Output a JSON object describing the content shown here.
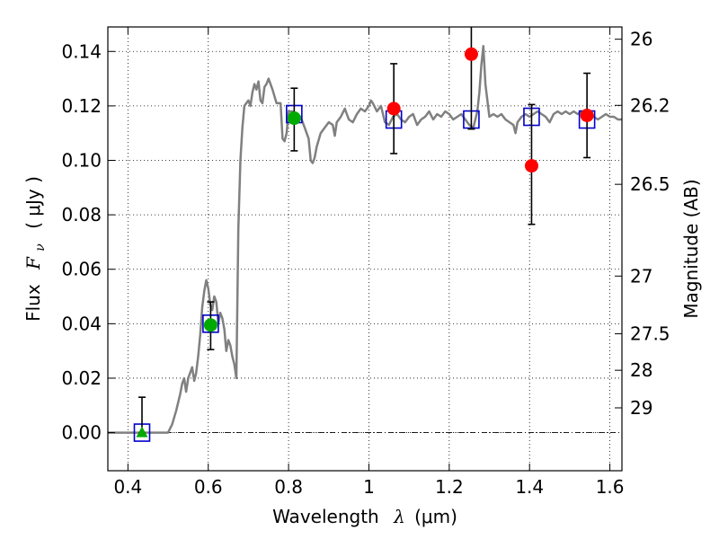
{
  "chart_data": {
    "type": "scatter",
    "xlabel": {
      "prefix": "Wavelength",
      "symbol": "λ",
      "unit": "(μm)"
    },
    "ylabel": {
      "prefix": "Flux",
      "symbol": "F",
      "subscript": "ν",
      "unit": "( μJy )"
    },
    "y2label": "Magnitude (AB)",
    "xlim": [
      0.35,
      1.63
    ],
    "ylim": [
      -0.014,
      0.149
    ],
    "grid": true,
    "x_ticks": [
      0.4,
      0.6,
      0.8,
      1.0,
      1.2,
      1.4,
      1.6
    ],
    "x_tick_labels": [
      "0.4",
      "0.6",
      "0.8",
      "1",
      "1.2",
      "1.4",
      "1.6"
    ],
    "y_ticks": [
      0.0,
      0.02,
      0.04,
      0.06,
      0.08,
      0.1,
      0.12,
      0.14
    ],
    "y_tick_labels": [
      "0.00",
      "0.02",
      "0.04",
      "0.06",
      "0.08",
      "0.10",
      "0.12",
      "0.14"
    ],
    "mag_ticks": [
      {
        "label": "26",
        "flux": 0.1445
      },
      {
        "label": "26.2",
        "flux": 0.1202
      },
      {
        "label": "26.5",
        "flux": 0.0912
      },
      {
        "label": "27",
        "flux": 0.0575
      },
      {
        "label": "27.5",
        "flux": 0.0363
      },
      {
        "label": "28",
        "flux": 0.0229
      },
      {
        "label": "29",
        "flux": 0.0091
      }
    ],
    "zero_line": 0.0,
    "series": [
      {
        "kind": "line",
        "color": "#808080",
        "points": [
          [
            0.35,
            0.0
          ],
          [
            0.5,
            0.0
          ],
          [
            0.51,
            0.003
          ],
          [
            0.52,
            0.008
          ],
          [
            0.53,
            0.014
          ],
          [
            0.535,
            0.018
          ],
          [
            0.54,
            0.02
          ],
          [
            0.545,
            0.015
          ],
          [
            0.55,
            0.02
          ],
          [
            0.56,
            0.024
          ],
          [
            0.565,
            0.019
          ],
          [
            0.57,
            0.022
          ],
          [
            0.575,
            0.028
          ],
          [
            0.58,
            0.036
          ],
          [
            0.585,
            0.046
          ],
          [
            0.59,
            0.052
          ],
          [
            0.595,
            0.056
          ],
          [
            0.6,
            0.053
          ],
          [
            0.605,
            0.047
          ],
          [
            0.61,
            0.045
          ],
          [
            0.615,
            0.05
          ],
          [
            0.62,
            0.048
          ],
          [
            0.625,
            0.04
          ],
          [
            0.63,
            0.044
          ],
          [
            0.635,
            0.042
          ],
          [
            0.64,
            0.038
          ],
          [
            0.645,
            0.03
          ],
          [
            0.65,
            0.034
          ],
          [
            0.655,
            0.032
          ],
          [
            0.66,
            0.028
          ],
          [
            0.665,
            0.025
          ],
          [
            0.67,
            0.02
          ],
          [
            0.675,
            0.075
          ],
          [
            0.68,
            0.1
          ],
          [
            0.685,
            0.112
          ],
          [
            0.69,
            0.12
          ],
          [
            0.7,
            0.122
          ],
          [
            0.705,
            0.12
          ],
          [
            0.71,
            0.125
          ],
          [
            0.715,
            0.128
          ],
          [
            0.72,
            0.126
          ],
          [
            0.725,
            0.129
          ],
          [
            0.73,
            0.122
          ],
          [
            0.735,
            0.121
          ],
          [
            0.74,
            0.127
          ],
          [
            0.745,
            0.128
          ],
          [
            0.75,
            0.13
          ],
          [
            0.76,
            0.126
          ],
          [
            0.77,
            0.121
          ],
          [
            0.78,
            0.121
          ],
          [
            0.785,
            0.108
          ],
          [
            0.79,
            0.107
          ],
          [
            0.795,
            0.11
          ],
          [
            0.8,
            0.118
          ],
          [
            0.81,
            0.118
          ],
          [
            0.82,
            0.117
          ],
          [
            0.83,
            0.116
          ],
          [
            0.84,
            0.112
          ],
          [
            0.85,
            0.108
          ],
          [
            0.855,
            0.1
          ],
          [
            0.86,
            0.099
          ],
          [
            0.865,
            0.101
          ],
          [
            0.87,
            0.105
          ],
          [
            0.88,
            0.11
          ],
          [
            0.89,
            0.112
          ],
          [
            0.9,
            0.114
          ],
          [
            0.91,
            0.113
          ],
          [
            0.915,
            0.109
          ],
          [
            0.92,
            0.114
          ],
          [
            0.93,
            0.116
          ],
          [
            0.94,
            0.119
          ],
          [
            0.945,
            0.117
          ],
          [
            0.95,
            0.115
          ],
          [
            0.96,
            0.114
          ],
          [
            0.97,
            0.117
          ],
          [
            0.98,
            0.119
          ],
          [
            0.99,
            0.118
          ],
          [
            1.0,
            0.12
          ],
          [
            1.005,
            0.122
          ],
          [
            1.01,
            0.121
          ],
          [
            1.02,
            0.118
          ],
          [
            1.03,
            0.12
          ],
          [
            1.035,
            0.117
          ],
          [
            1.04,
            0.114
          ],
          [
            1.05,
            0.113
          ],
          [
            1.06,
            0.116
          ],
          [
            1.07,
            0.117
          ],
          [
            1.08,
            0.115
          ],
          [
            1.09,
            0.114
          ],
          [
            1.1,
            0.116
          ],
          [
            1.11,
            0.117
          ],
          [
            1.12,
            0.113
          ],
          [
            1.13,
            0.115
          ],
          [
            1.14,
            0.116
          ],
          [
            1.15,
            0.118
          ],
          [
            1.16,
            0.115
          ],
          [
            1.17,
            0.117
          ],
          [
            1.18,
            0.116
          ],
          [
            1.19,
            0.118
          ],
          [
            1.2,
            0.117
          ],
          [
            1.21,
            0.115
          ],
          [
            1.22,
            0.116
          ],
          [
            1.23,
            0.117
          ],
          [
            1.24,
            0.115
          ],
          [
            1.25,
            0.113
          ],
          [
            1.26,
            0.112
          ],
          [
            1.27,
            0.118
          ],
          [
            1.275,
            0.125
          ],
          [
            1.28,
            0.135
          ],
          [
            1.285,
            0.142
          ],
          [
            1.29,
            0.128
          ],
          [
            1.3,
            0.116
          ],
          [
            1.31,
            0.117
          ],
          [
            1.32,
            0.116
          ],
          [
            1.33,
            0.117
          ],
          [
            1.34,
            0.115
          ],
          [
            1.35,
            0.114
          ],
          [
            1.36,
            0.113
          ],
          [
            1.365,
            0.11
          ],
          [
            1.37,
            0.114
          ],
          [
            1.38,
            0.116
          ],
          [
            1.39,
            0.117
          ],
          [
            1.4,
            0.116
          ],
          [
            1.41,
            0.117
          ],
          [
            1.42,
            0.118
          ],
          [
            1.43,
            0.117
          ],
          [
            1.44,
            0.116
          ],
          [
            1.45,
            0.114
          ],
          [
            1.46,
            0.117
          ],
          [
            1.47,
            0.118
          ],
          [
            1.48,
            0.117
          ],
          [
            1.49,
            0.118
          ],
          [
            1.5,
            0.117
          ],
          [
            1.51,
            0.118
          ],
          [
            1.52,
            0.117
          ],
          [
            1.53,
            0.118
          ],
          [
            1.54,
            0.117
          ],
          [
            1.55,
            0.118
          ],
          [
            1.56,
            0.116
          ],
          [
            1.57,
            0.115
          ],
          [
            1.58,
            0.116
          ],
          [
            1.59,
            0.117
          ],
          [
            1.6,
            0.116
          ],
          [
            1.61,
            0.116
          ],
          [
            1.62,
            0.115
          ],
          [
            1.63,
            0.115
          ]
        ]
      },
      {
        "kind": "markers",
        "marker": "square-open",
        "color": "#0000cc",
        "points": [
          [
            0.435,
            0.0
          ],
          [
            0.606,
            0.04
          ],
          [
            0.814,
            0.117
          ],
          [
            1.062,
            0.115
          ],
          [
            1.255,
            0.115
          ],
          [
            1.405,
            0.116
          ],
          [
            1.543,
            0.115
          ]
        ]
      },
      {
        "kind": "markers",
        "marker": "triangle",
        "color": "#00aa00",
        "points": [
          [
            0.435,
            0.0
          ]
        ],
        "errors": [
          [
            0.0,
            0.013
          ]
        ]
      },
      {
        "kind": "markers",
        "marker": "circle",
        "color": "#00aa00",
        "points": [
          [
            0.606,
            0.0395
          ],
          [
            0.814,
            0.1155
          ]
        ],
        "errors": [
          [
            0.0305,
            0.048
          ],
          [
            0.1035,
            0.1265
          ]
        ]
      },
      {
        "kind": "markers",
        "marker": "circle",
        "color": "#ff0000",
        "points": [
          [
            1.062,
            0.119
          ],
          [
            1.255,
            0.139
          ],
          [
            1.405,
            0.098
          ],
          [
            1.543,
            0.1165
          ]
        ],
        "errors": [
          [
            0.1025,
            0.1355
          ],
          [
            0.1115,
            0.151
          ],
          [
            0.0765,
            0.1205
          ],
          [
            0.101,
            0.132
          ]
        ]
      }
    ]
  }
}
